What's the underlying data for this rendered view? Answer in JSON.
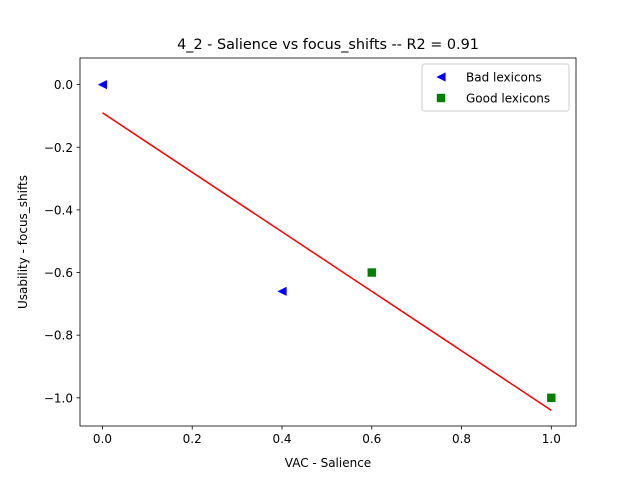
{
  "chart_data": {
    "type": "scatter",
    "title": "4_2 - Salience  vs  focus_shifts -- R2 = 0.91",
    "xlabel": "VAC - Salience",
    "ylabel": "Usability - focus_shifts",
    "xlim": [
      -0.05,
      1.055
    ],
    "ylim": [
      -1.09,
      0.085
    ],
    "xticks": [
      0.0,
      0.2,
      0.4,
      0.6,
      0.8,
      1.0
    ],
    "xtick_labels": [
      "0.0",
      "0.2",
      "0.4",
      "0.6",
      "0.8",
      "1.0"
    ],
    "yticks": [
      0.0,
      -0.2,
      -0.4,
      -0.6,
      -0.8,
      -1.0
    ],
    "ytick_labels": [
      "0.0",
      "−0.2",
      "−0.4",
      "−0.6",
      "−0.8",
      "−1.0"
    ],
    "grid": false,
    "legend_position": "top-right",
    "series": [
      {
        "name": "Bad lexicons",
        "marker": "triangle-left",
        "color": "#0000ff",
        "points": [
          {
            "x": 0.0,
            "y": 0.0
          },
          {
            "x": 0.4,
            "y": -0.66
          }
        ]
      },
      {
        "name": "Good lexicons",
        "marker": "square",
        "color": "#008000",
        "points": [
          {
            "x": 0.6,
            "y": -0.6
          },
          {
            "x": 1.0,
            "y": -1.0
          }
        ]
      }
    ],
    "fit_line": {
      "color": "#ff0000",
      "points": [
        {
          "x": 0.0,
          "y": -0.09
        },
        {
          "x": 1.0,
          "y": -1.04
        }
      ]
    }
  }
}
